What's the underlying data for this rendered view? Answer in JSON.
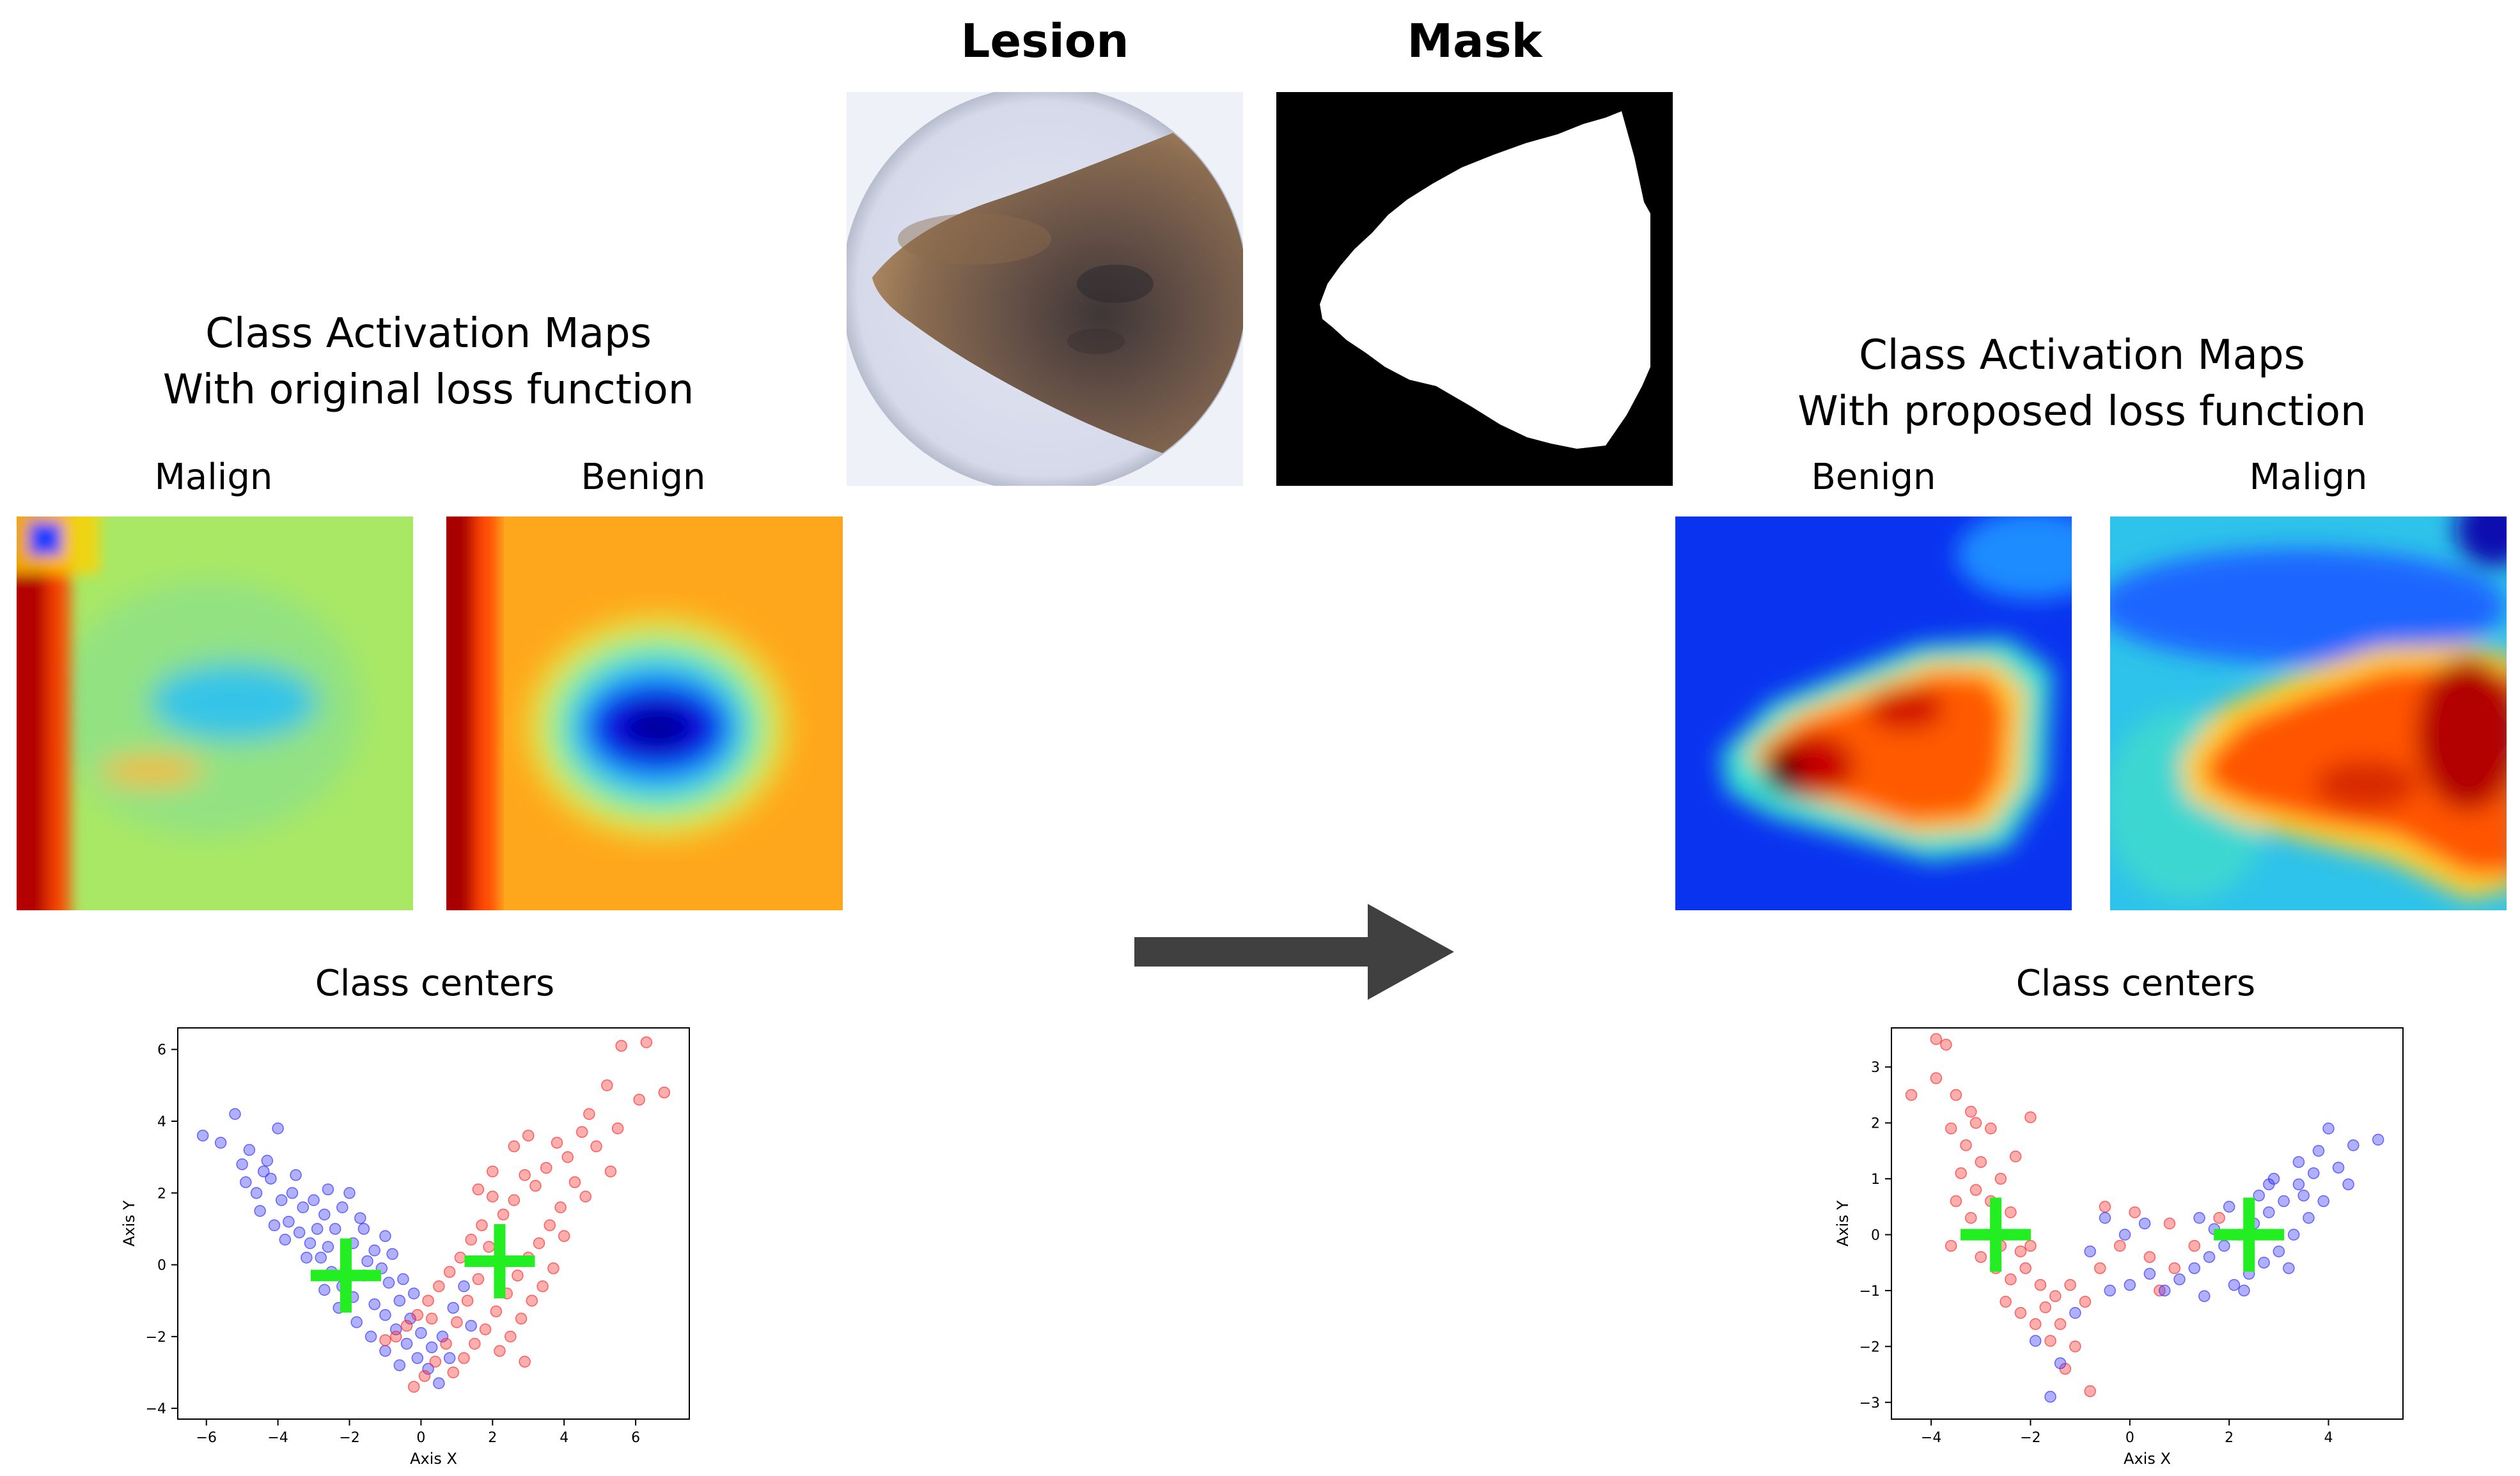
{
  "top": {
    "lesion_title": "Lesion",
    "mask_title": "Mask"
  },
  "left": {
    "title_line1": "Class Activation Maps",
    "title_line2": "With original loss function",
    "maps": [
      {
        "label": "Malign"
      },
      {
        "label": "Benign"
      }
    ],
    "centers_title": "Class centers"
  },
  "right": {
    "title_line1": "Class Activation Maps",
    "title_line2": "With proposed loss function",
    "maps": [
      {
        "label": "Benign"
      },
      {
        "label": "Malign"
      }
    ],
    "centers_title": "Class centers"
  },
  "colors": {
    "blue_points": "#3030ff",
    "red_points": "#ff2a2a",
    "centers": "#22ee22",
    "arrow": "#404040"
  },
  "chart_data": [
    {
      "type": "scatter",
      "xlabel": "Axis X",
      "ylabel": "Axis Y",
      "xlim": [
        -6.8,
        7.5
      ],
      "ylim": [
        -4.3,
        6.6
      ],
      "xticks": [
        -6,
        -4,
        -2,
        0,
        2,
        4,
        6
      ],
      "yticks": [
        -4,
        -2,
        0,
        2,
        4,
        6
      ],
      "series": [
        {
          "color": "#3030ff",
          "points": [
            [
              -6.1,
              3.6
            ],
            [
              -5.6,
              3.4
            ],
            [
              -5.2,
              4.2
            ],
            [
              -4.8,
              3.2
            ],
            [
              -4.4,
              2.6
            ],
            [
              -4.0,
              3.8
            ],
            [
              -4.9,
              2.3
            ],
            [
              -4.6,
              2.0
            ],
            [
              -4.2,
              2.4
            ],
            [
              -3.9,
              1.8
            ],
            [
              -3.6,
              2.0
            ],
            [
              -3.3,
              1.6
            ],
            [
              -3.0,
              1.8
            ],
            [
              -2.7,
              1.4
            ],
            [
              -2.4,
              1.0
            ],
            [
              -2.2,
              1.6
            ],
            [
              -1.9,
              0.6
            ],
            [
              -1.6,
              1.0
            ],
            [
              -1.3,
              0.4
            ],
            [
              -1.0,
              0.8
            ],
            [
              -3.7,
              1.2
            ],
            [
              -3.4,
              0.9
            ],
            [
              -3.1,
              0.6
            ],
            [
              -2.8,
              0.2
            ],
            [
              -2.5,
              -0.2
            ],
            [
              -2.2,
              -0.6
            ],
            [
              -1.9,
              -0.9
            ],
            [
              -1.6,
              -0.3
            ],
            [
              -1.3,
              -1.1
            ],
            [
              -1.0,
              -1.4
            ],
            [
              -0.7,
              -1.8
            ],
            [
              -0.4,
              -2.2
            ],
            [
              -0.1,
              -2.6
            ],
            [
              0.2,
              -2.9
            ],
            [
              0.5,
              -3.3
            ],
            [
              -0.9,
              -0.5
            ],
            [
              -0.6,
              -1.0
            ],
            [
              -0.3,
              -1.5
            ],
            [
              0.0,
              -1.9
            ],
            [
              0.3,
              -2.3
            ],
            [
              0.6,
              -2.0
            ],
            [
              0.9,
              -1.2
            ],
            [
              1.2,
              -0.6
            ],
            [
              -2.9,
              1.0
            ],
            [
              -2.6,
              0.5
            ],
            [
              -1.5,
              0.1
            ],
            [
              -0.8,
              0.3
            ],
            [
              -0.5,
              -0.4
            ],
            [
              -4.5,
              1.5
            ],
            [
              -4.1,
              1.1
            ],
            [
              -3.8,
              0.7
            ],
            [
              -2.0,
              2.0
            ],
            [
              -1.7,
              1.3
            ],
            [
              -1.1,
              -0.1
            ],
            [
              -0.2,
              -0.8
            ],
            [
              0.8,
              -2.6
            ],
            [
              1.4,
              -1.7
            ],
            [
              -2.3,
              -1.2
            ],
            [
              -1.8,
              -1.6
            ],
            [
              -1.4,
              -2.0
            ],
            [
              -1.0,
              -2.4
            ],
            [
              -0.6,
              -2.8
            ],
            [
              -3.2,
              0.2
            ],
            [
              -2.7,
              -0.7
            ],
            [
              -5.0,
              2.8
            ],
            [
              -4.3,
              2.9
            ],
            [
              -3.5,
              2.5
            ],
            [
              -2.6,
              2.1
            ]
          ]
        },
        {
          "color": "#ff2a2a",
          "points": [
            [
              5.6,
              6.1
            ],
            [
              6.3,
              6.2
            ],
            [
              6.8,
              4.8
            ],
            [
              6.1,
              4.6
            ],
            [
              5.2,
              5.0
            ],
            [
              4.7,
              4.2
            ],
            [
              5.5,
              3.8
            ],
            [
              4.9,
              3.3
            ],
            [
              4.5,
              3.7
            ],
            [
              4.1,
              3.0
            ],
            [
              3.8,
              3.4
            ],
            [
              3.5,
              2.7
            ],
            [
              3.2,
              2.2
            ],
            [
              2.9,
              2.5
            ],
            [
              2.6,
              1.8
            ],
            [
              2.3,
              1.4
            ],
            [
              2.0,
              1.9
            ],
            [
              1.7,
              1.1
            ],
            [
              1.4,
              0.7
            ],
            [
              1.1,
              0.2
            ],
            [
              0.8,
              -0.2
            ],
            [
              0.5,
              -0.6
            ],
            [
              0.2,
              -1.0
            ],
            [
              -0.1,
              -1.4
            ],
            [
              -0.4,
              -1.7
            ],
            [
              -0.7,
              -2.0
            ],
            [
              -1.0,
              -2.1
            ],
            [
              3.9,
              1.6
            ],
            [
              3.6,
              1.1
            ],
            [
              3.3,
              0.6
            ],
            [
              3.0,
              0.2
            ],
            [
              2.7,
              -0.3
            ],
            [
              2.4,
              -0.8
            ],
            [
              2.1,
              -1.3
            ],
            [
              1.8,
              -1.8
            ],
            [
              1.5,
              -2.2
            ],
            [
              1.2,
              -2.6
            ],
            [
              0.9,
              -3.0
            ],
            [
              2.2,
              -2.4
            ],
            [
              2.5,
              -2.0
            ],
            [
              2.8,
              -1.5
            ],
            [
              3.1,
              -1.0
            ],
            [
              4.3,
              2.3
            ],
            [
              4.6,
              1.9
            ],
            [
              4.0,
              0.8
            ],
            [
              3.7,
              -0.1
            ],
            [
              3.4,
              -0.6
            ],
            [
              1.9,
              0.5
            ],
            [
              1.6,
              -0.4
            ],
            [
              1.3,
              -1.0
            ],
            [
              1.0,
              -1.6
            ],
            [
              0.7,
              -2.2
            ],
            [
              0.4,
              -2.7
            ],
            [
              0.1,
              -3.1
            ],
            [
              -0.2,
              -3.4
            ],
            [
              2.6,
              3.3
            ],
            [
              2.0,
              2.6
            ],
            [
              1.6,
              2.1
            ],
            [
              3.0,
              3.6
            ],
            [
              5.3,
              2.6
            ],
            [
              2.9,
              -2.7
            ],
            [
              0.3,
              -1.5
            ]
          ]
        },
        {
          "color": "#22ee22",
          "marker": "+",
          "points": [
            [
              -2.1,
              -0.3
            ],
            [
              2.2,
              0.1
            ]
          ]
        }
      ]
    },
    {
      "type": "scatter",
      "xlabel": "Axis X",
      "ylabel": "Axis Y",
      "xlim": [
        -4.8,
        5.5
      ],
      "ylim": [
        -3.3,
        3.7
      ],
      "xticks": [
        -4,
        -2,
        0,
        2,
        4
      ],
      "yticks": [
        -3,
        -2,
        -1,
        0,
        1,
        2,
        3
      ],
      "series": [
        {
          "color": "#ff2a2a",
          "points": [
            [
              -3.9,
              3.5
            ],
            [
              -3.7,
              3.4
            ],
            [
              -4.4,
              2.5
            ],
            [
              -3.9,
              2.8
            ],
            [
              -3.5,
              2.5
            ],
            [
              -3.2,
              2.2
            ],
            [
              -3.6,
              1.9
            ],
            [
              -3.3,
              1.6
            ],
            [
              -3.0,
              1.3
            ],
            [
              -3.4,
              1.1
            ],
            [
              -3.1,
              0.8
            ],
            [
              -2.8,
              0.6
            ],
            [
              -3.2,
              0.3
            ],
            [
              -2.9,
              0.0
            ],
            [
              -2.6,
              -0.2
            ],
            [
              -3.0,
              -0.4
            ],
            [
              -2.7,
              -0.6
            ],
            [
              -2.4,
              -0.8
            ],
            [
              -2.1,
              -0.6
            ],
            [
              -1.8,
              -0.9
            ],
            [
              -1.5,
              -1.1
            ],
            [
              -1.2,
              -0.9
            ],
            [
              -0.9,
              -1.2
            ],
            [
              -2.5,
              -1.2
            ],
            [
              -2.2,
              -1.4
            ],
            [
              -1.9,
              -1.6
            ],
            [
              -1.6,
              -1.9
            ],
            [
              -1.3,
              -2.4
            ],
            [
              -0.8,
              -2.8
            ],
            [
              -2.0,
              2.1
            ],
            [
              -2.3,
              1.4
            ],
            [
              -2.6,
              1.0
            ],
            [
              -2.8,
              1.9
            ],
            [
              -0.5,
              0.5
            ],
            [
              0.1,
              0.4
            ],
            [
              0.8,
              0.2
            ],
            [
              1.3,
              -0.2
            ],
            [
              1.8,
              0.3
            ],
            [
              0.4,
              -0.4
            ],
            [
              0.9,
              -0.6
            ],
            [
              -0.2,
              -0.2
            ],
            [
              0.6,
              -1.0
            ],
            [
              -0.6,
              -0.6
            ],
            [
              -3.5,
              0.6
            ],
            [
              -3.6,
              -0.2
            ],
            [
              -2.0,
              -0.2
            ],
            [
              -1.7,
              -1.3
            ],
            [
              -1.4,
              -1.6
            ],
            [
              -1.1,
              -2.0
            ],
            [
              -3.1,
              2.0
            ],
            [
              -2.4,
              0.4
            ],
            [
              -2.2,
              -0.3
            ]
          ]
        },
        {
          "color": "#3030ff",
          "points": [
            [
              5.0,
              1.7
            ],
            [
              4.5,
              1.6
            ],
            [
              4.0,
              1.9
            ],
            [
              3.7,
              1.1
            ],
            [
              3.4,
              0.9
            ],
            [
              3.1,
              0.6
            ],
            [
              2.8,
              0.4
            ],
            [
              2.5,
              0.2
            ],
            [
              2.2,
              0.0
            ],
            [
              1.9,
              -0.2
            ],
            [
              1.6,
              -0.4
            ],
            [
              1.3,
              -0.6
            ],
            [
              1.0,
              -0.8
            ],
            [
              0.7,
              -1.0
            ],
            [
              3.9,
              0.6
            ],
            [
              3.6,
              0.3
            ],
            [
              3.3,
              0.0
            ],
            [
              3.0,
              -0.3
            ],
            [
              2.7,
              -0.5
            ],
            [
              2.4,
              -0.7
            ],
            [
              2.1,
              -0.9
            ],
            [
              4.2,
              1.2
            ],
            [
              3.8,
              1.5
            ],
            [
              3.4,
              1.3
            ],
            [
              2.9,
              1.0
            ],
            [
              2.6,
              0.7
            ],
            [
              2.0,
              0.5
            ],
            [
              1.7,
              0.1
            ],
            [
              1.4,
              0.3
            ],
            [
              0.4,
              -0.7
            ],
            [
              0.0,
              -0.9
            ],
            [
              -0.4,
              -1.0
            ],
            [
              -0.8,
              -0.3
            ],
            [
              -0.5,
              0.3
            ],
            [
              -0.1,
              0.0
            ],
            [
              0.3,
              0.2
            ],
            [
              -1.9,
              -1.9
            ],
            [
              -1.6,
              -2.9
            ],
            [
              -1.4,
              -2.3
            ],
            [
              -1.1,
              -1.4
            ],
            [
              2.3,
              -1.0
            ],
            [
              3.2,
              -0.6
            ],
            [
              4.4,
              0.9
            ],
            [
              1.5,
              -1.1
            ],
            [
              2.8,
              0.9
            ],
            [
              3.5,
              0.7
            ]
          ]
        },
        {
          "color": "#22ee22",
          "marker": "+",
          "points": [
            [
              -2.7,
              0.0
            ],
            [
              2.4,
              0.0
            ]
          ]
        }
      ]
    }
  ]
}
